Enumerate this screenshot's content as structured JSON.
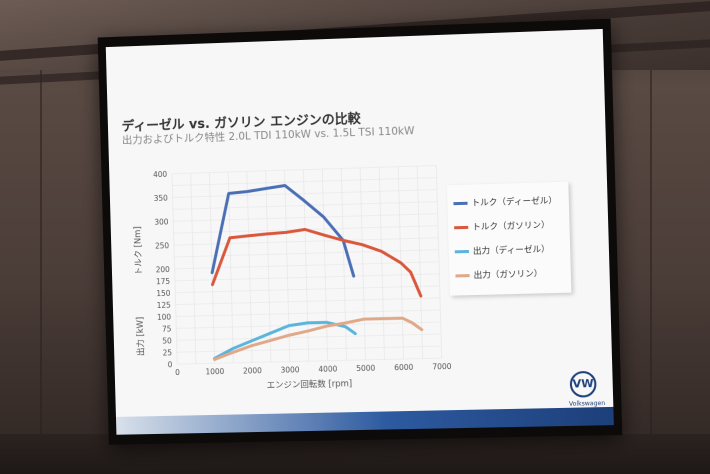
{
  "screen": {
    "title": "ディーゼル vs. ガソリン エンジンの比較",
    "subtitle": "出力およびトルク特性 2.0L TDI 110kW vs. 1.5L TSI 110kW",
    "logo_text": "Volkswagen"
  },
  "chart_data": {
    "type": "line",
    "xlabel": "エンジン回転数 [rpm]",
    "ylabel_top": "トルク [Nm]",
    "ylabel_bottom": "出力 [kW]",
    "xlim": [
      0,
      7000
    ],
    "ylim": [
      0,
      400
    ],
    "x_ticks": [
      "0",
      "1000",
      "2000",
      "3000",
      "4000",
      "5000",
      "6000",
      "7000"
    ],
    "y_ticks": [
      "0",
      "25",
      "50",
      "75",
      "100",
      "125",
      "150",
      "175",
      "200",
      "250",
      "300",
      "350",
      "400"
    ],
    "legend_position": "right",
    "series": [
      {
        "name": "トルク（ディーゼル）",
        "color": "#4a6fb5",
        "points": [
          [
            1000,
            190
          ],
          [
            1500,
            355
          ],
          [
            2000,
            358
          ],
          [
            2500,
            363
          ],
          [
            3000,
            368
          ],
          [
            3500,
            335
          ],
          [
            4000,
            300
          ],
          [
            4500,
            250
          ],
          [
            4750,
            175
          ]
        ]
      },
      {
        "name": "トルク（ガソリン）",
        "color": "#d9583b",
        "points": [
          [
            1000,
            165
          ],
          [
            1500,
            262
          ],
          [
            2000,
            265
          ],
          [
            2500,
            268
          ],
          [
            3000,
            270
          ],
          [
            3500,
            275
          ],
          [
            4000,
            262
          ],
          [
            4500,
            250
          ],
          [
            5000,
            240
          ],
          [
            5500,
            225
          ],
          [
            6000,
            200
          ],
          [
            6250,
            180
          ],
          [
            6500,
            130
          ]
        ]
      },
      {
        "name": "出力（ディーゼル）",
        "color": "#5ab4dc",
        "points": [
          [
            1000,
            10
          ],
          [
            1500,
            30
          ],
          [
            2000,
            45
          ],
          [
            2500,
            60
          ],
          [
            3000,
            75
          ],
          [
            3500,
            80
          ],
          [
            4000,
            80
          ],
          [
            4500,
            70
          ],
          [
            4750,
            55
          ]
        ]
      },
      {
        "name": "出力（ガソリン）",
        "color": "#e0a888",
        "points": [
          [
            1000,
            8
          ],
          [
            1500,
            22
          ],
          [
            2000,
            35
          ],
          [
            2500,
            45
          ],
          [
            3000,
            55
          ],
          [
            3500,
            63
          ],
          [
            4000,
            72
          ],
          [
            4500,
            78
          ],
          [
            5000,
            85
          ],
          [
            5500,
            85
          ],
          [
            6000,
            85
          ],
          [
            6250,
            75
          ],
          [
            6500,
            60
          ]
        ]
      }
    ]
  }
}
